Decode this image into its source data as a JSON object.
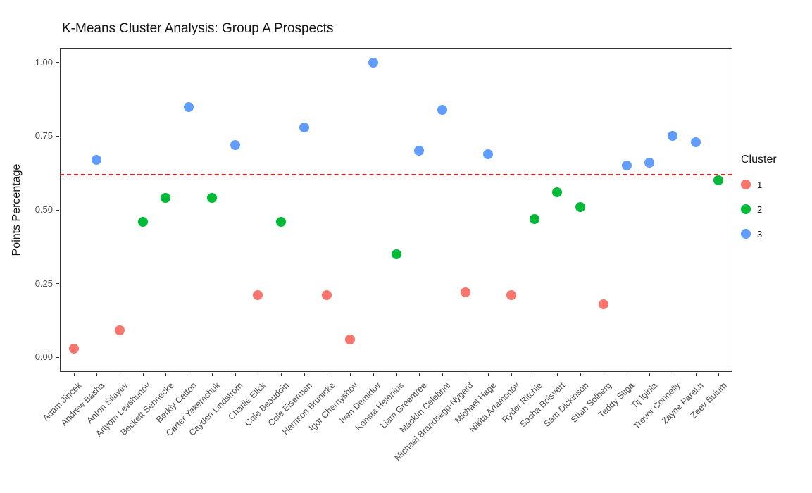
{
  "chart_data": {
    "type": "scatter",
    "title": "K-Means Cluster Analysis: Group A Prospects",
    "xlabel": "",
    "ylabel": "Points Percentage",
    "ylim": [
      0,
      1
    ],
    "yticks": [
      0.0,
      0.25,
      0.5,
      0.75,
      1.0
    ],
    "ytick_labels": [
      "0.00",
      "0.25",
      "0.50",
      "0.75",
      "1.00"
    ],
    "grid": false,
    "legend_position": "right",
    "reference_line": {
      "y": 0.62,
      "color": "#e02020",
      "style": "dashed"
    },
    "cluster_colors": {
      "1": "#F8766D",
      "2": "#00BA38",
      "3": "#619CFF"
    },
    "points": [
      {
        "name": "Adam Jiricek",
        "value": 0.03,
        "cluster": 1
      },
      {
        "name": "Andrew Basha",
        "value": 0.67,
        "cluster": 3
      },
      {
        "name": "Anton Silayev",
        "value": 0.09,
        "cluster": 1
      },
      {
        "name": "Artyom Levshunov",
        "value": 0.46,
        "cluster": 2
      },
      {
        "name": "Beckett Sennecke",
        "value": 0.54,
        "cluster": 2
      },
      {
        "name": "Berkly Catton",
        "value": 0.85,
        "cluster": 3
      },
      {
        "name": "Carter Yakemchuk",
        "value": 0.54,
        "cluster": 2
      },
      {
        "name": "Cayden Lindstrom",
        "value": 0.72,
        "cluster": 3
      },
      {
        "name": "Charlie Elick",
        "value": 0.21,
        "cluster": 1
      },
      {
        "name": "Cole Beaudoin",
        "value": 0.46,
        "cluster": 2
      },
      {
        "name": "Cole Eiserman",
        "value": 0.78,
        "cluster": 3
      },
      {
        "name": "Harrison Brunicke",
        "value": 0.21,
        "cluster": 1
      },
      {
        "name": "Igor Chernyshov",
        "value": 0.06,
        "cluster": 1
      },
      {
        "name": "Ivan Demidov",
        "value": 1.0,
        "cluster": 3
      },
      {
        "name": "Konsta Helenius",
        "value": 0.35,
        "cluster": 2
      },
      {
        "name": "Liam Greentree",
        "value": 0.7,
        "cluster": 3
      },
      {
        "name": "Macklin Celebrini",
        "value": 0.84,
        "cluster": 3
      },
      {
        "name": "Michael Brandsegg-Nygard",
        "value": 0.22,
        "cluster": 1
      },
      {
        "name": "Michael Hage",
        "value": 0.69,
        "cluster": 3
      },
      {
        "name": "Nikita Artamonov",
        "value": 0.21,
        "cluster": 1
      },
      {
        "name": "Ryder Ritchie",
        "value": 0.47,
        "cluster": 2
      },
      {
        "name": "Sacha Boisvert",
        "value": 0.56,
        "cluster": 2
      },
      {
        "name": "Sam Dickinson",
        "value": 0.51,
        "cluster": 2
      },
      {
        "name": "Stian Solberg",
        "value": 0.18,
        "cluster": 1
      },
      {
        "name": "Teddy Stiga",
        "value": 0.65,
        "cluster": 3
      },
      {
        "name": "Tij Iginla",
        "value": 0.66,
        "cluster": 3
      },
      {
        "name": "Trevor Connelly",
        "value": 0.75,
        "cluster": 3
      },
      {
        "name": "Zayne Parekh",
        "value": 0.73,
        "cluster": 3
      },
      {
        "name": "Zeev Buium",
        "value": 0.6,
        "cluster": 2
      }
    ]
  },
  "legend": {
    "title": "Cluster",
    "items": [
      {
        "label": "1",
        "color": "#F8766D"
      },
      {
        "label": "2",
        "color": "#00BA38"
      },
      {
        "label": "3",
        "color": "#619CFF"
      }
    ]
  }
}
